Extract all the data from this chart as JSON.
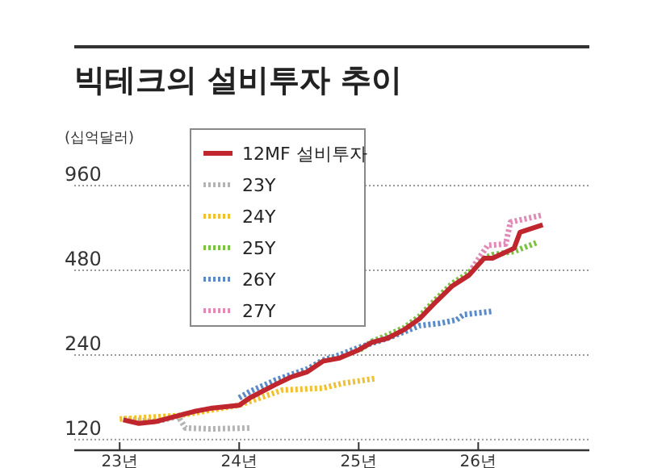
{
  "chart_data": {
    "type": "line",
    "title": "빅테크의 설비투자 추이",
    "ylabel": "(십억달러)",
    "log": true,
    "grid": "y",
    "legend": "top left",
    "marker": "none",
    "xlim": [
      22.62,
      26.93
    ],
    "xticks": [
      {
        "value": 23,
        "label": "23년"
      },
      {
        "value": 24,
        "label": "24년"
      },
      {
        "value": 25,
        "label": "25년"
      },
      {
        "value": 26,
        "label": "26년"
      }
    ],
    "ylim": [
      110,
      960
    ],
    "yticks": [
      120,
      240,
      480,
      960
    ],
    "series": [
      {
        "name": "23Y",
        "color": "#b4b4b4",
        "line_style": "dotted",
        "x": [
          23.03,
          23.3,
          23.49,
          23.55,
          23.76,
          24.09
        ],
        "values": [
          142,
          139,
          145,
          132,
          131,
          132
        ]
      },
      {
        "name": "24Y",
        "color": "#f0c030",
        "line_style": "dotted",
        "x": [
          23.0,
          23.49,
          24.0,
          24.16,
          24.36,
          24.7,
          24.86,
          25.14
        ],
        "values": [
          142,
          146,
          159,
          168,
          180,
          183,
          190,
          198
        ]
      },
      {
        "name": "25Y",
        "color": "#7cc142",
        "line_style": "dotted",
        "x": [
          25.01,
          25.11,
          25.24,
          25.38,
          25.51,
          25.65,
          25.78,
          25.92,
          26.05,
          26.12,
          26.3,
          26.5
        ],
        "values": [
          250,
          268,
          282,
          300,
          330,
          380,
          430,
          470,
          530,
          545,
          560,
          604
        ]
      },
      {
        "name": "26Y",
        "color": "#5b8ac6",
        "line_style": "dotted",
        "x": [
          24.0,
          24.09,
          24.3,
          24.57,
          24.7,
          24.84,
          25.0,
          25.24,
          25.38,
          25.51,
          25.68,
          25.82,
          25.88,
          26.12
        ],
        "values": [
          169,
          178,
          195,
          214,
          230,
          240,
          255,
          275,
          290,
          305,
          311,
          320,
          334,
          343
        ]
      },
      {
        "name": "27Y",
        "color": "#e08ab8",
        "line_style": "dotted",
        "x": [
          25.95,
          26.08,
          26.23,
          26.27,
          26.53
        ],
        "values": [
          488,
          589,
          595,
          712,
          753
        ]
      },
      {
        "name": "12MF 설비투자",
        "color": "#c0262d",
        "line_style": "solid",
        "x": [
          23.03,
          23.16,
          23.3,
          23.49,
          23.62,
          23.76,
          24.0,
          24.09,
          24.3,
          24.43,
          24.57,
          24.7,
          24.84,
          25.0,
          25.11,
          25.24,
          25.38,
          25.51,
          25.65,
          25.78,
          25.92,
          26.05,
          26.12,
          26.3,
          26.35,
          26.54
        ],
        "values": [
          141,
          137,
          139,
          146,
          151,
          155,
          159,
          169,
          188,
          200,
          209,
          228,
          234,
          250,
          266,
          275,
          295,
          323,
          372,
          421,
          460,
          530,
          530,
          575,
          655,
          696
        ]
      }
    ]
  }
}
